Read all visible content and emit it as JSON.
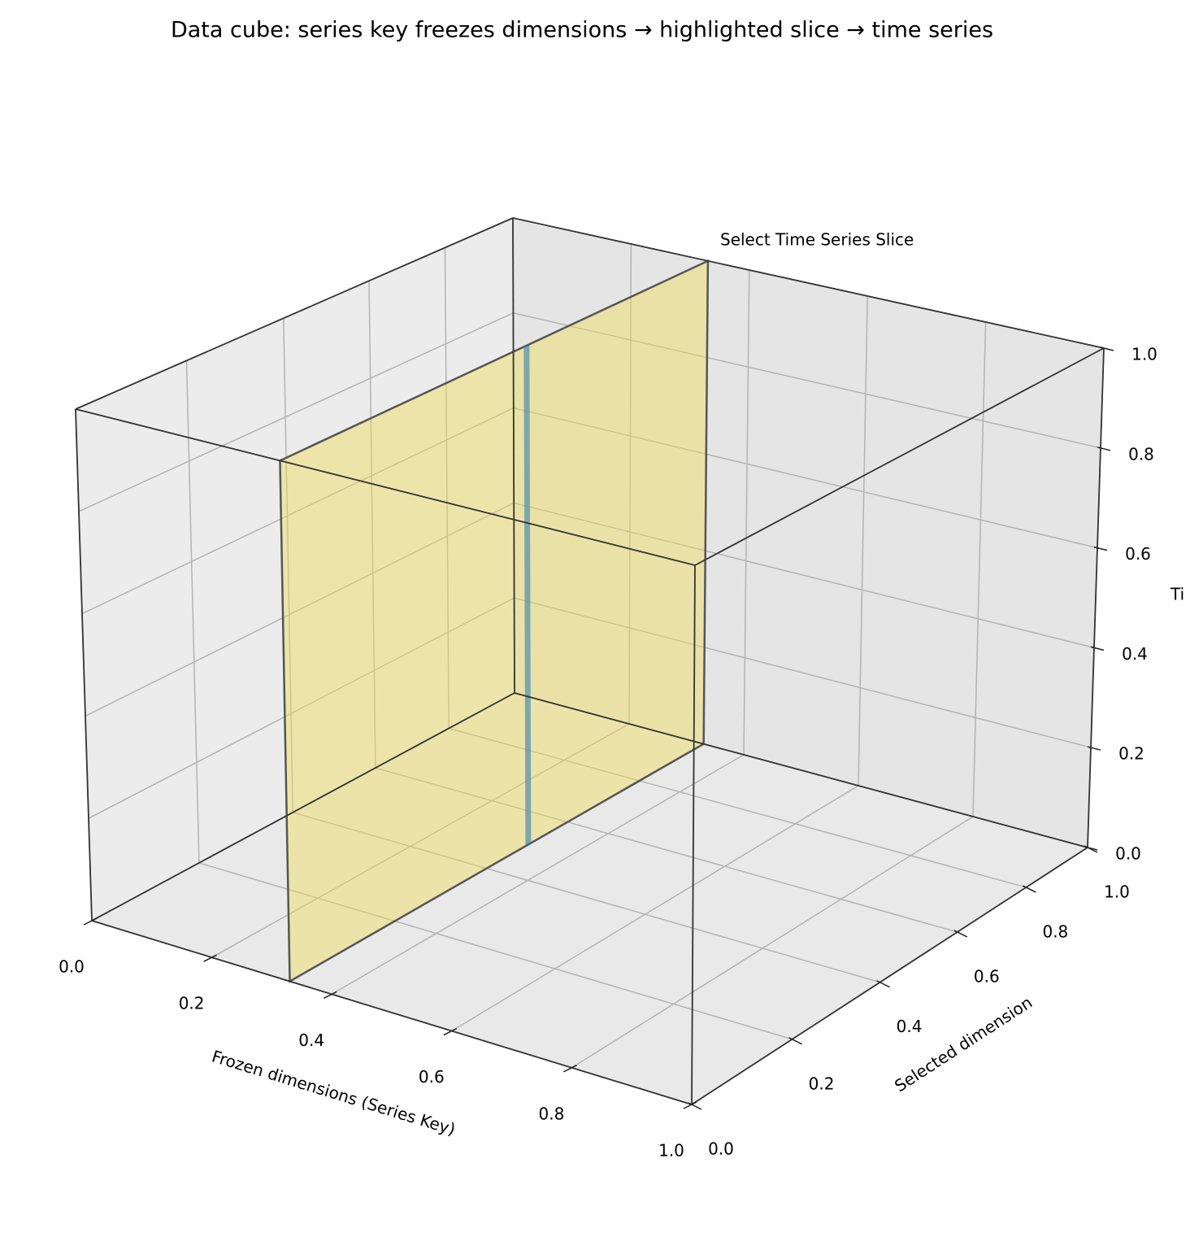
{
  "chart_data": {
    "type": "cube3d",
    "title": "Data cube: series key freezes dimensions → highlighted slice → time series",
    "xlabel": "Frozen dimensions (Series Key)",
    "ylabel": "Selected dimension",
    "zlabel": "Ti",
    "annotation": "Select Time Series Slice",
    "xlim": [
      0,
      1
    ],
    "ylim": [
      0,
      1
    ],
    "zlim": [
      0,
      1
    ],
    "xticks": [
      {
        "value": 0,
        "label": "0.0"
      },
      0.2,
      0.4,
      0.6,
      0.8,
      {
        "value": 1,
        "label": "1.0"
      }
    ],
    "yticks": [
      {
        "value": 0,
        "label": "0.0"
      },
      0.2,
      0.4,
      0.6,
      0.8,
      {
        "value": 1,
        "label": "1.0"
      }
    ],
    "zticks": [
      {
        "value": 0,
        "label": "0.0"
      },
      0.2,
      0.4,
      0.6,
      0.8,
      {
        "value": 1,
        "label": "1.0"
      }
    ],
    "grid": true,
    "slice": {
      "x": 0.33,
      "y": [
        0,
        1
      ],
      "z": [
        0,
        1
      ],
      "color": "#f0dc5a"
    },
    "series": [
      {
        "x": [
          0.33,
          0.33
        ],
        "y": [
          0.5,
          0.5
        ],
        "z": [
          0,
          1
        ],
        "color": "#1f77b4"
      }
    ]
  }
}
